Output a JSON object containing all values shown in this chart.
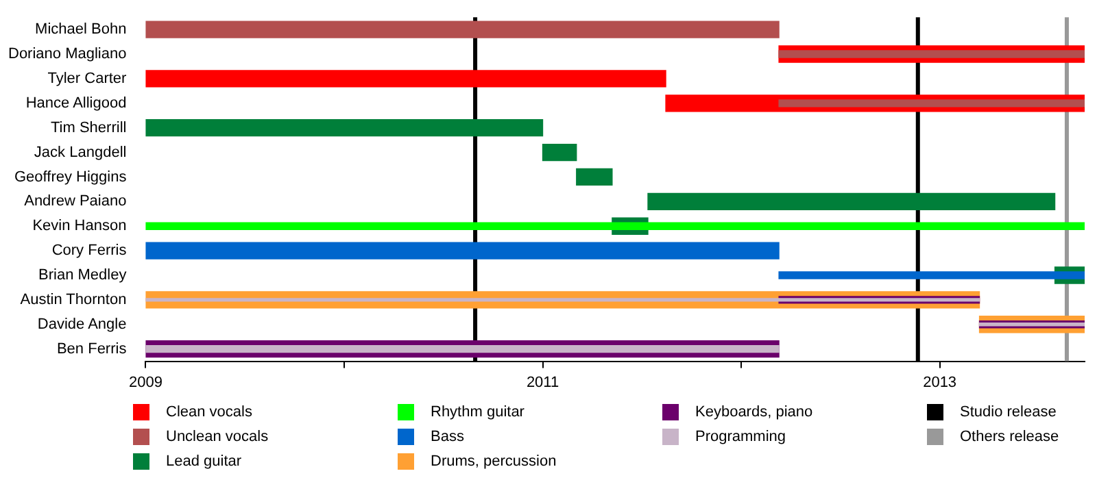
{
  "chart_data": {
    "type": "bar",
    "orientation": "horizontal",
    "categories": [
      "Michael Bohn",
      "Doriano Magliano",
      "Tyler Carter",
      "Hance Alligood",
      "Tim Sherrill",
      "Jack Langdell",
      "Geoffrey Higgins",
      "Andrew Paiano",
      "Kevin Hanson",
      "Cory Ferris",
      "Brian Medley",
      "Austin Thornton",
      "Davide Angle",
      "Ben Ferris"
    ],
    "series": [
      {
        "name": "Clean vocals",
        "color": "#ff0000",
        "base": [
          null,
          2012.19,
          2009,
          2011.62,
          null,
          null,
          null,
          null,
          null,
          null,
          null,
          null,
          null,
          null
        ],
        "values": [
          null,
          1.54,
          2.62,
          2.11,
          null,
          null,
          null,
          null,
          null,
          null,
          null,
          null,
          null,
          null
        ]
      },
      {
        "name": "Unclean vocals",
        "color": "#b34f4f",
        "base": [
          2009,
          2012.19,
          null,
          2012.19,
          null,
          null,
          null,
          null,
          null,
          null,
          null,
          null,
          null,
          null
        ],
        "values": [
          3.19,
          1.54,
          null,
          1.54,
          null,
          null,
          null,
          null,
          null,
          null,
          null,
          null,
          null,
          null
        ]
      },
      {
        "name": "Lead guitar",
        "color": "#007f3a",
        "base": [
          null,
          null,
          null,
          null,
          2009,
          2011,
          2011.17,
          2011.53,
          2011.35,
          null,
          2013.58,
          null,
          null,
          null
        ],
        "values": [
          null,
          null,
          null,
          null,
          2.0,
          0.17,
          0.18,
          2.05,
          0.18,
          null,
          0.15,
          null,
          null,
          null
        ]
      },
      {
        "name": "Rhythm guitar",
        "color": "#00ff00",
        "base": [
          null,
          null,
          null,
          null,
          null,
          null,
          null,
          null,
          2009,
          null,
          null,
          null,
          null,
          null
        ],
        "values": [
          null,
          null,
          null,
          null,
          null,
          null,
          null,
          null,
          4.73,
          null,
          null,
          null,
          null,
          null
        ]
      },
      {
        "name": "Bass",
        "color": "#0066cc",
        "base": [
          null,
          null,
          null,
          null,
          null,
          null,
          null,
          null,
          null,
          2009,
          2012.19,
          null,
          null,
          null
        ],
        "values": [
          null,
          null,
          null,
          null,
          null,
          null,
          null,
          null,
          null,
          3.19,
          1.54,
          null,
          null,
          null
        ]
      },
      {
        "name": "Drums, percussion",
        "color": "#ffa033",
        "base": [
          null,
          null,
          null,
          null,
          null,
          null,
          null,
          null,
          null,
          null,
          null,
          2009,
          2013.2,
          null
        ],
        "values": [
          null,
          null,
          null,
          null,
          null,
          null,
          null,
          null,
          null,
          null,
          null,
          4.2,
          0.53,
          null
        ]
      },
      {
        "name": "Keyboards, piano",
        "color": "#6b006b",
        "base": [
          null,
          null,
          null,
          null,
          null,
          null,
          null,
          null,
          null,
          null,
          null,
          2012.19,
          2013.2,
          2009
        ],
        "values": [
          null,
          null,
          null,
          null,
          null,
          null,
          null,
          null,
          null,
          null,
          null,
          1.01,
          0.53,
          3.19
        ]
      },
      {
        "name": "Programming",
        "color": "#c8b4c8",
        "base": [
          null,
          null,
          null,
          null,
          null,
          null,
          null,
          null,
          null,
          null,
          null,
          2009,
          2013.2,
          2009
        ],
        "values": [
          null,
          null,
          null,
          null,
          null,
          null,
          null,
          null,
          null,
          null,
          null,
          4.2,
          0.53,
          3.19
        ]
      }
    ],
    "xlim": [
      2009,
      2013.73
    ],
    "xticks": [
      2009,
      {
        "value": 2010,
        "label": null
      },
      2011,
      {
        "value": 2012,
        "label": null
      },
      2013
    ],
    "ref_lines": [
      {
        "axis": "x",
        "value": 2010.66,
        "label": "Studio release",
        "color": "#000000"
      },
      {
        "axis": "x",
        "value": 2012.89,
        "color": "#000000"
      },
      {
        "axis": "x",
        "value": 2013.64,
        "label": "Others release",
        "color": "#999999"
      }
    ],
    "legend": "bottom",
    "grid": false
  }
}
